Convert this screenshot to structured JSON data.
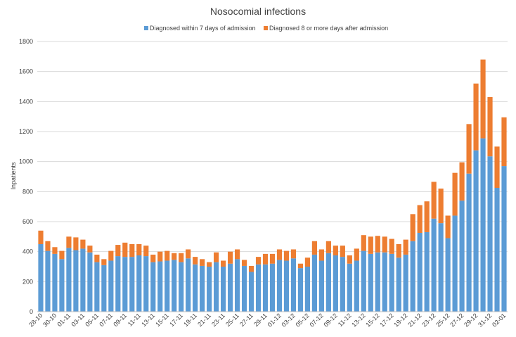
{
  "chart_data": {
    "type": "bar",
    "stacked": true,
    "title": "Nosocomial infections",
    "xlabel": "",
    "ylabel": "Inpatients",
    "ylim": [
      0,
      1800
    ],
    "yticks": [
      0,
      200,
      400,
      600,
      800,
      1000,
      1200,
      1400,
      1600,
      1800
    ],
    "grid": true,
    "legend_position": "top",
    "categories": [
      "28-10",
      "29-10",
      "30-10",
      "31-10",
      "01-11",
      "02-11",
      "03-11",
      "04-11",
      "05-11",
      "06-11",
      "07-11",
      "08-11",
      "09-11",
      "10-11",
      "11-11",
      "12-11",
      "13-11",
      "14-11",
      "15-11",
      "16-11",
      "17-11",
      "18-11",
      "19-11",
      "20-11",
      "21-11",
      "22-11",
      "23-11",
      "24-11",
      "25-11",
      "26-11",
      "27-11",
      "28-11",
      "29-11",
      "30-11",
      "01-12",
      "02-12",
      "03-12",
      "04-12",
      "05-12",
      "06-12",
      "07-12",
      "08-12",
      "09-12",
      "10-12",
      "11-12",
      "12-12",
      "13-12",
      "14-12",
      "15-12",
      "16-12",
      "17-12",
      "18-12",
      "19-12",
      "20-12",
      "21-12",
      "22-12",
      "23-12",
      "24-12",
      "25-12",
      "26-12",
      "27-12",
      "28-12",
      "29-12",
      "30-12",
      "31-12",
      "01-01",
      "02-01"
    ],
    "shown_tick_labels": [
      "28-10",
      "30-10",
      "01-11",
      "03-11",
      "05-11",
      "07-11",
      "09-11",
      "11-11",
      "13-11",
      "15-11",
      "17-11",
      "19-11",
      "21-11",
      "23-11",
      "25-11",
      "27-11",
      "29-11",
      "01-12",
      "03-12",
      "05-12",
      "07-12",
      "09-12",
      "11-12",
      "13-12",
      "15-12",
      "17-12",
      "19-12",
      "21-12",
      "23-12",
      "25-12",
      "27-12",
      "29-12",
      "31-12",
      "02-01"
    ],
    "series": [
      {
        "name": "Diagnosed within 7 days of admission",
        "color": "#5B9BD5",
        "values": [
          450,
          405,
          385,
          350,
          425,
          410,
          420,
          395,
          330,
          310,
          340,
          370,
          365,
          365,
          375,
          370,
          330,
          335,
          340,
          345,
          330,
          355,
          315,
          305,
          300,
          330,
          300,
          320,
          350,
          305,
          265,
          315,
          315,
          320,
          345,
          340,
          355,
          290,
          300,
          380,
          340,
          390,
          375,
          365,
          320,
          340,
          405,
          385,
          395,
          395,
          385,
          360,
          380,
          470,
          525,
          530,
          620,
          590,
          490,
          640,
          740,
          920,
          1075,
          1155,
          1035,
          825,
          970
        ]
      },
      {
        "name": "Diagnosed 8 or more days after admission",
        "color": "#ED7D31",
        "values": [
          90,
          65,
          45,
          55,
          75,
          85,
          60,
          45,
          50,
          40,
          65,
          75,
          95,
          85,
          75,
          70,
          50,
          65,
          65,
          45,
          60,
          60,
          50,
          45,
          30,
          65,
          40,
          80,
          65,
          40,
          40,
          50,
          70,
          65,
          70,
          65,
          60,
          30,
          60,
          90,
          75,
          80,
          65,
          75,
          55,
          80,
          105,
          115,
          110,
          105,
          100,
          90,
          100,
          180,
          185,
          205,
          245,
          230,
          150,
          285,
          255,
          330,
          445,
          525,
          395,
          275,
          325
        ]
      }
    ]
  }
}
